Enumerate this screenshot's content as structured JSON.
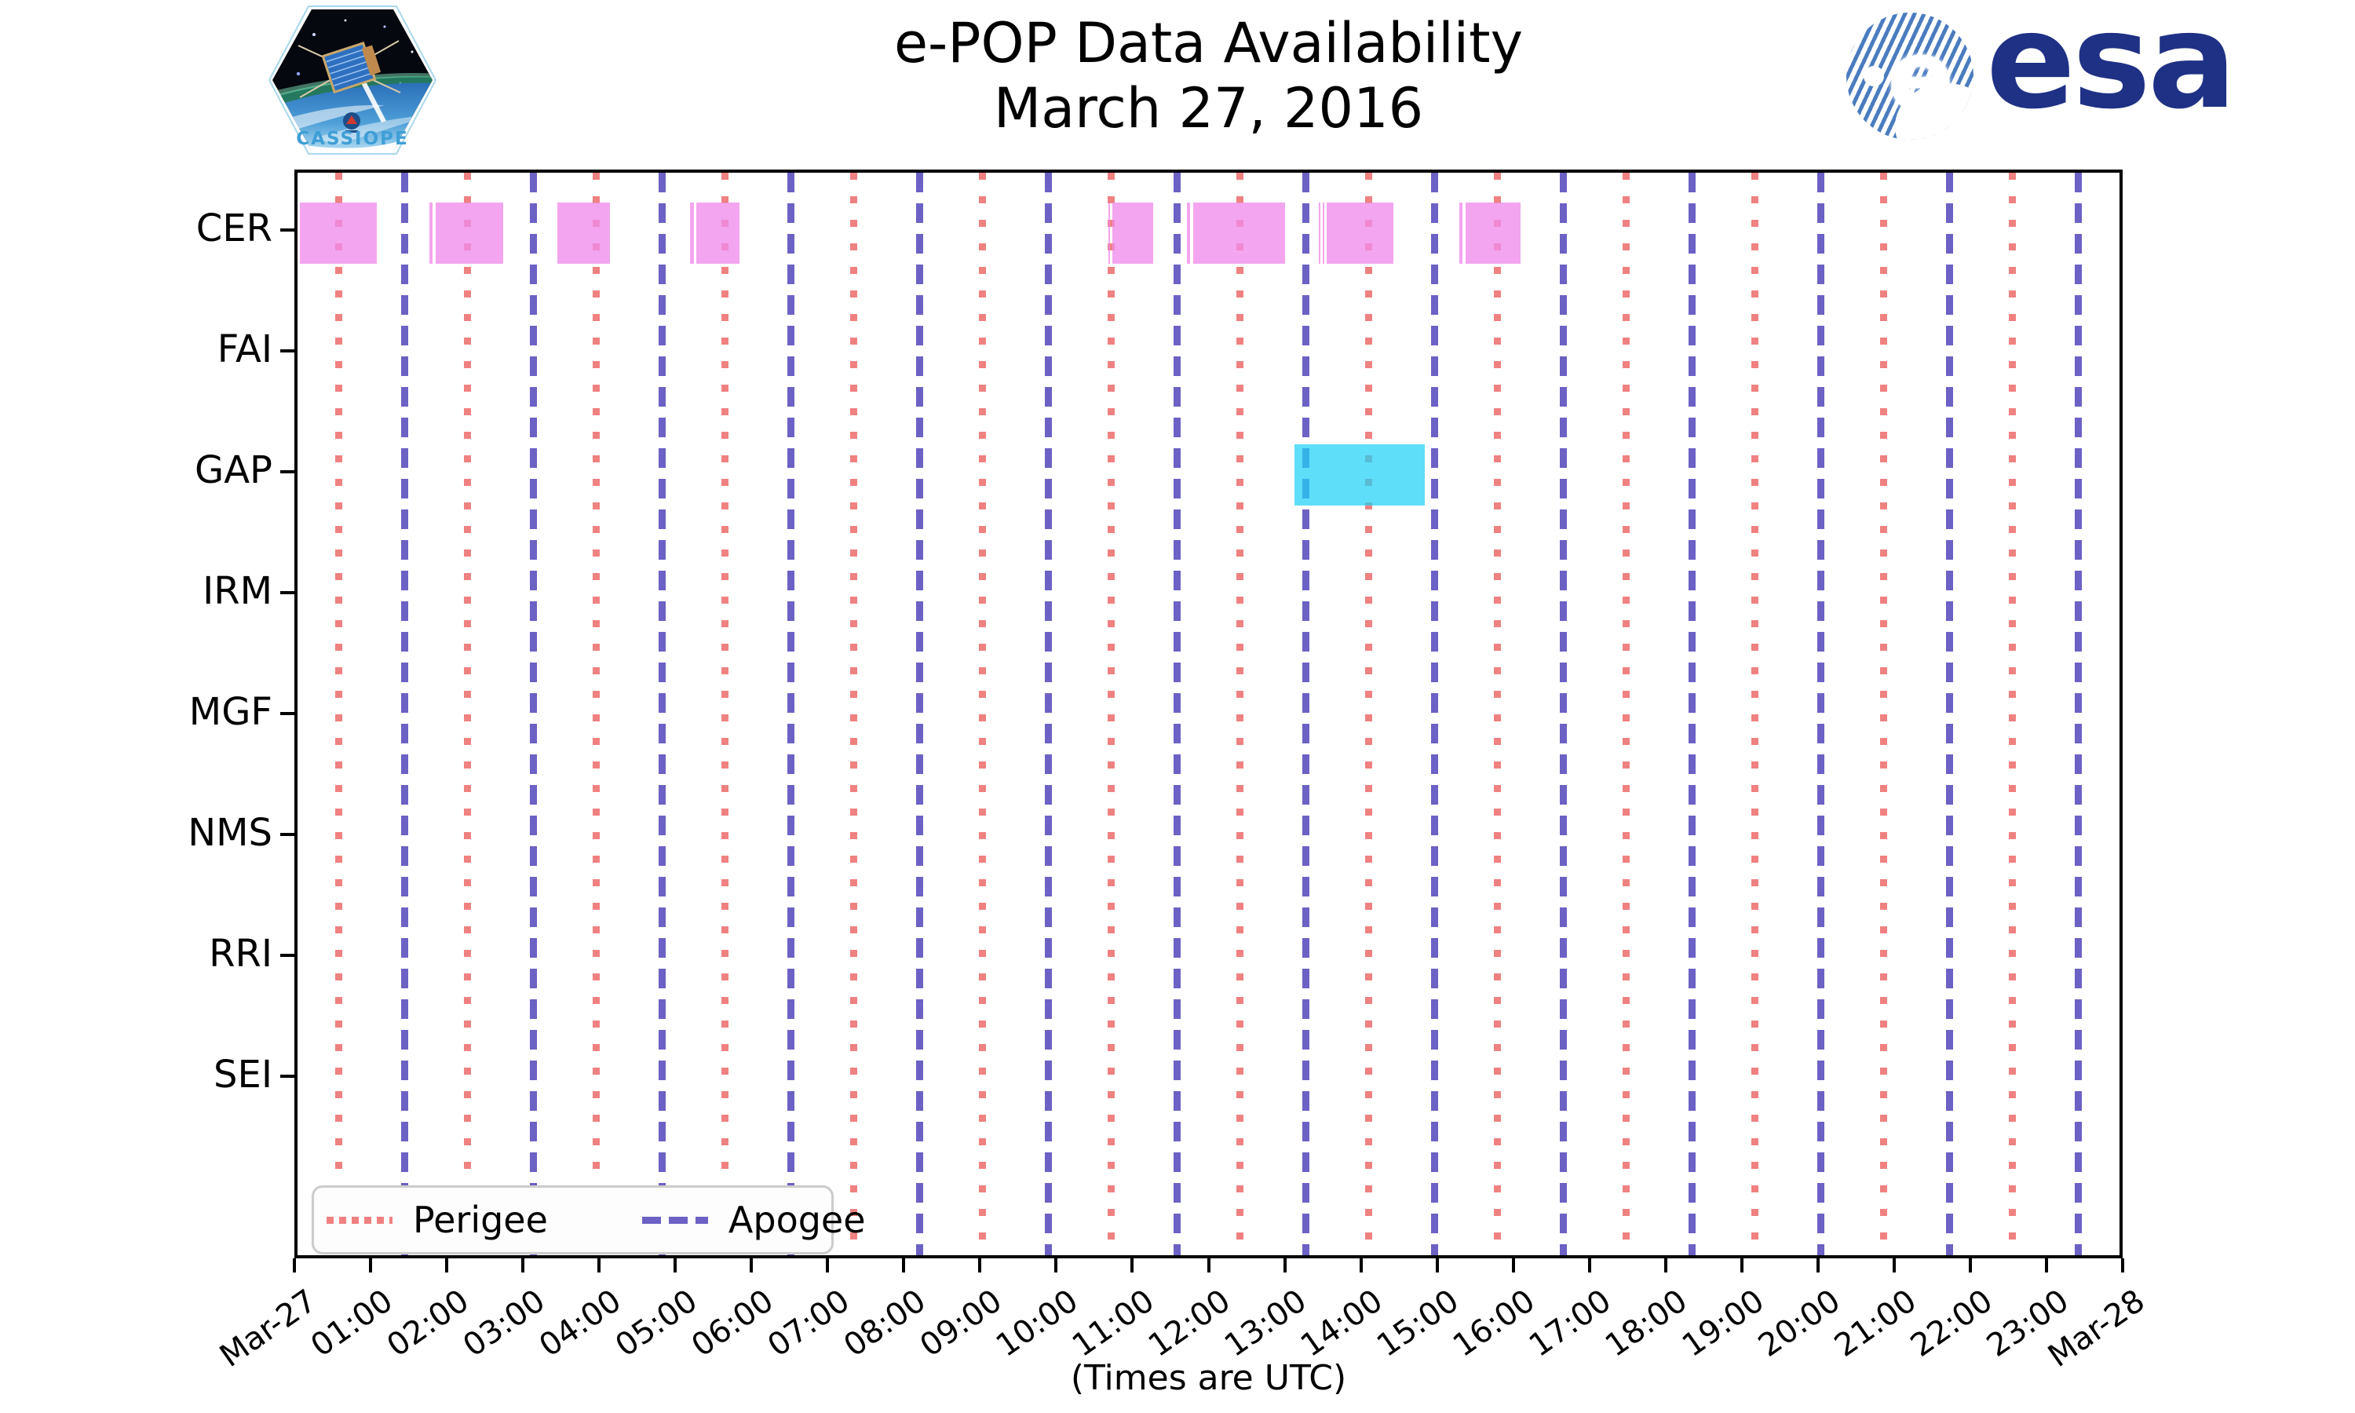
{
  "header": {
    "title": "e-POP Data Availability",
    "subtitle": "March 27, 2016"
  },
  "logos": {
    "cassiope_label": "CASSIOPE",
    "esa_label": "esa",
    "esa_e_glyph": "e"
  },
  "footer": {
    "xlabel": "(Times are UTC)"
  },
  "legend": {
    "items": [
      {
        "label": "Perigee",
        "style": "dotted",
        "color": "#ee7676"
      },
      {
        "label": "Apogee",
        "style": "dashed",
        "color": "#5c50be"
      }
    ]
  },
  "chart_data": {
    "type": "gantt-availability",
    "title": "e-POP Data Availability",
    "subtitle": "March 27, 2016",
    "xlabel": "(Times are UTC)",
    "x_range_hours": [
      0,
      24
    ],
    "x_tick_labels": [
      "Mar-27",
      "01:00",
      "02:00",
      "03:00",
      "04:00",
      "05:00",
      "06:00",
      "07:00",
      "08:00",
      "09:00",
      "10:00",
      "11:00",
      "12:00",
      "13:00",
      "14:00",
      "15:00",
      "16:00",
      "17:00",
      "18:00",
      "19:00",
      "20:00",
      "21:00",
      "22:00",
      "23:00",
      "Mar-28"
    ],
    "instruments": [
      "CER",
      "FAI",
      "GAP",
      "IRM",
      "MGF",
      "NMS",
      "RRI",
      "SEI"
    ],
    "grid": "off",
    "legend_position": "lower-left-inside",
    "series": [
      {
        "name": "CER availability",
        "instrument": "CER",
        "color": "rgba(240,140,235,0.78)",
        "base_color": "#ee82ee",
        "segments_hours": [
          [
            0.03,
            1.04
          ],
          [
            1.73,
            1.77
          ],
          [
            1.81,
            2.7
          ],
          [
            3.41,
            4.1
          ],
          [
            5.15,
            5.2
          ],
          [
            5.24,
            5.8
          ],
          [
            10.64,
            10.66
          ],
          [
            10.7,
            11.23
          ],
          [
            11.68,
            11.72
          ],
          [
            11.76,
            12.96
          ],
          [
            13.41,
            13.43
          ],
          [
            13.46,
            13.48
          ],
          [
            13.51,
            14.39
          ],
          [
            15.25,
            15.29
          ],
          [
            15.33,
            16.06
          ]
        ]
      },
      {
        "name": "GAP availability",
        "instrument": "GAP",
        "color": "rgba(32,209,245,0.72)",
        "base_color": "#20d1f5",
        "segments_hours": [
          [
            13.09,
            14.8
          ]
        ]
      }
    ],
    "perigee_hours": [
      0.54,
      2.23,
      3.92,
      5.61,
      7.3,
      8.99,
      10.68,
      12.37,
      14.06,
      15.75,
      17.44,
      19.13,
      20.82,
      22.51
    ],
    "apogee_hours": [
      1.41,
      3.1,
      4.79,
      6.48,
      8.17,
      9.86,
      11.55,
      13.24,
      14.93,
      16.62,
      18.31,
      20.0,
      21.69,
      23.38
    ],
    "line_colors": {
      "perigee": "rgba(238,118,118,0.92)",
      "apogee": "rgba(92,80,190,0.90)"
    }
  }
}
